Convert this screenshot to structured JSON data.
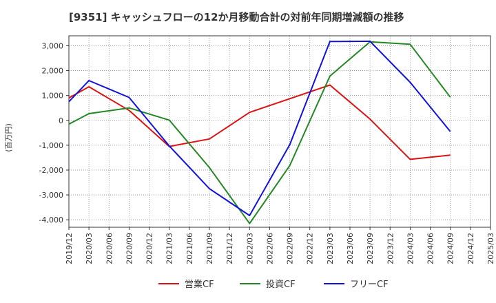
{
  "chart_data": {
    "type": "line",
    "title": "[9351]  キャッシュフローの12か月移動合計の対前年同期増減額の推移",
    "ylabel": "(百万円)",
    "xlabel": "",
    "ylim": [
      -4300,
      3400
    ],
    "yticks": [
      3000,
      2000,
      1000,
      0,
      -1000,
      -2000,
      -3000,
      -4000
    ],
    "ytick_labels": [
      "3,000",
      "2,000",
      "1,000",
      "0",
      "-1,000",
      "-2,000",
      "-3,000",
      "-4,000"
    ],
    "x_ticks": [
      "2019/12",
      "2020/03",
      "2020/06",
      "2020/09",
      "2020/12",
      "2021/03",
      "2021/06",
      "2021/09",
      "2021/12",
      "2022/03",
      "2022/06",
      "2022/09",
      "2022/12",
      "2023/03",
      "2023/06",
      "2023/09",
      "2023/12",
      "2024/03",
      "2024/06",
      "2024/09",
      "2024/12",
      "2025/03"
    ],
    "grid": true,
    "legend_position": "bottom",
    "series": [
      {
        "name": "営業CF",
        "color": "#dd1111",
        "points": [
          [
            "2019/12",
            900
          ],
          [
            "2020/03",
            1350
          ],
          [
            "2020/09",
            400
          ],
          [
            "2021/03",
            -1050
          ],
          [
            "2021/09",
            -750
          ],
          [
            "2022/03",
            320
          ],
          [
            "2023/03",
            1420
          ],
          [
            "2023/09",
            50
          ],
          [
            "2024/03",
            -1570
          ],
          [
            "2024/09",
            -1400
          ]
        ]
      },
      {
        "name": "投資CF",
        "color": "#228822",
        "points": [
          [
            "2019/12",
            -150
          ],
          [
            "2020/03",
            270
          ],
          [
            "2020/09",
            500
          ],
          [
            "2021/03",
            10
          ],
          [
            "2021/09",
            -1900
          ],
          [
            "2022/03",
            -4150
          ],
          [
            "2022/09",
            -1820
          ],
          [
            "2023/03",
            1780
          ],
          [
            "2023/09",
            3160
          ],
          [
            "2024/03",
            3060
          ],
          [
            "2024/09",
            930
          ]
        ]
      },
      {
        "name": "フリーCF",
        "color": "#1111dd",
        "points": [
          [
            "2019/12",
            750
          ],
          [
            "2020/03",
            1600
          ],
          [
            "2020/09",
            920
          ],
          [
            "2021/03",
            -1030
          ],
          [
            "2021/09",
            -2750
          ],
          [
            "2022/03",
            -3830
          ],
          [
            "2022/09",
            -980
          ],
          [
            "2023/03",
            3170
          ],
          [
            "2023/09",
            3180
          ],
          [
            "2024/03",
            1530
          ],
          [
            "2024/09",
            -450
          ]
        ]
      }
    ]
  }
}
